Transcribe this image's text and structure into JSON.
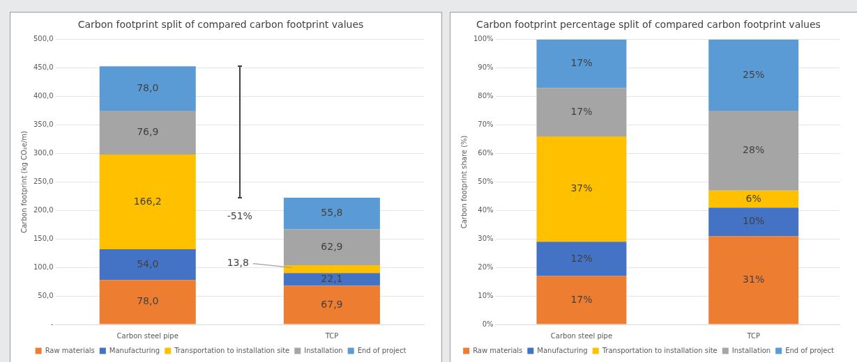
{
  "chart_data": [
    {
      "type": "bar",
      "title": "Carbon footprint split of compared carbon footprint values",
      "ylabel": "Carbon footprint (kg CO₂e/m)",
      "categories": [
        "Carbon steel pipe",
        "TCP"
      ],
      "stacked": true,
      "series": [
        {
          "name": "Raw materials",
          "color": "#ed7d31",
          "values": [
            78.0,
            67.9
          ],
          "value_labels": [
            "78,0",
            "67,9"
          ]
        },
        {
          "name": "Manufacturing",
          "color": "#4472c4",
          "values": [
            54.0,
            22.1
          ],
          "value_labels": [
            "54,0",
            "22,1"
          ]
        },
        {
          "name": "Transportation to installation site",
          "color": "#ffc000",
          "values": [
            166.2,
            13.8
          ],
          "value_labels": [
            "166,2",
            "13,8"
          ]
        },
        {
          "name": "Installation",
          "color": "#a5a5a5",
          "values": [
            76.9,
            62.9
          ],
          "value_labels": [
            "76,9",
            "62,9"
          ]
        },
        {
          "name": "End of project",
          "color": "#5b9bd5",
          "values": [
            78.0,
            55.8
          ],
          "value_labels": [
            "78,0",
            "55,8"
          ]
        }
      ],
      "ylim": [
        0,
        500
      ],
      "yticks": [
        {
          "value": 0,
          "label": "-"
        },
        {
          "value": 50,
          "label": "50,0"
        },
        {
          "value": 100,
          "label": "100,0"
        },
        {
          "value": 150,
          "label": "150,0"
        },
        {
          "value": 200,
          "label": "200,0"
        },
        {
          "value": 250,
          "label": "250,0"
        },
        {
          "value": 300,
          "label": "300,0"
        },
        {
          "value": 350,
          "label": "350,0"
        },
        {
          "value": 400,
          "label": "400,0"
        },
        {
          "value": 450,
          "label": "450,0"
        },
        {
          "value": 500,
          "label": "500,0"
        }
      ],
      "annotations": [
        "-51%"
      ],
      "grid": "y",
      "legend": "bottom"
    },
    {
      "type": "bar",
      "title": "Carbon footprint percentage split of compared carbon footprint values",
      "ylabel": "Carbon footprint share (%)",
      "categories": [
        "Carbon steel pipe",
        "TCP"
      ],
      "stacked": true,
      "series": [
        {
          "name": "Raw materials",
          "color": "#ed7d31",
          "values": [
            17,
            31
          ],
          "value_labels": [
            "17%",
            "31%"
          ]
        },
        {
          "name": "Manufacturing",
          "color": "#4472c4",
          "values": [
            12,
            10
          ],
          "value_labels": [
            "12%",
            "10%"
          ]
        },
        {
          "name": "Transportation to installation site",
          "color": "#ffc000",
          "values": [
            37,
            6
          ],
          "value_labels": [
            "37%",
            "6%"
          ]
        },
        {
          "name": "Installation",
          "color": "#a5a5a5",
          "values": [
            17,
            28
          ],
          "value_labels": [
            "17%",
            "28%"
          ]
        },
        {
          "name": "End of project",
          "color": "#5b9bd5",
          "values": [
            17,
            25
          ],
          "value_labels": [
            "17%",
            "25%"
          ]
        }
      ],
      "ylim": [
        0,
        100
      ],
      "yticks": [
        {
          "value": 0,
          "label": "0%"
        },
        {
          "value": 10,
          "label": "10%"
        },
        {
          "value": 20,
          "label": "20%"
        },
        {
          "value": 30,
          "label": "30%"
        },
        {
          "value": 40,
          "label": "40%"
        },
        {
          "value": 50,
          "label": "50%"
        },
        {
          "value": 60,
          "label": "60%"
        },
        {
          "value": 70,
          "label": "70%"
        },
        {
          "value": 80,
          "label": "80%"
        },
        {
          "value": 90,
          "label": "90%"
        },
        {
          "value": 100,
          "label": "100%"
        }
      ],
      "grid": "y",
      "legend": "bottom"
    }
  ]
}
